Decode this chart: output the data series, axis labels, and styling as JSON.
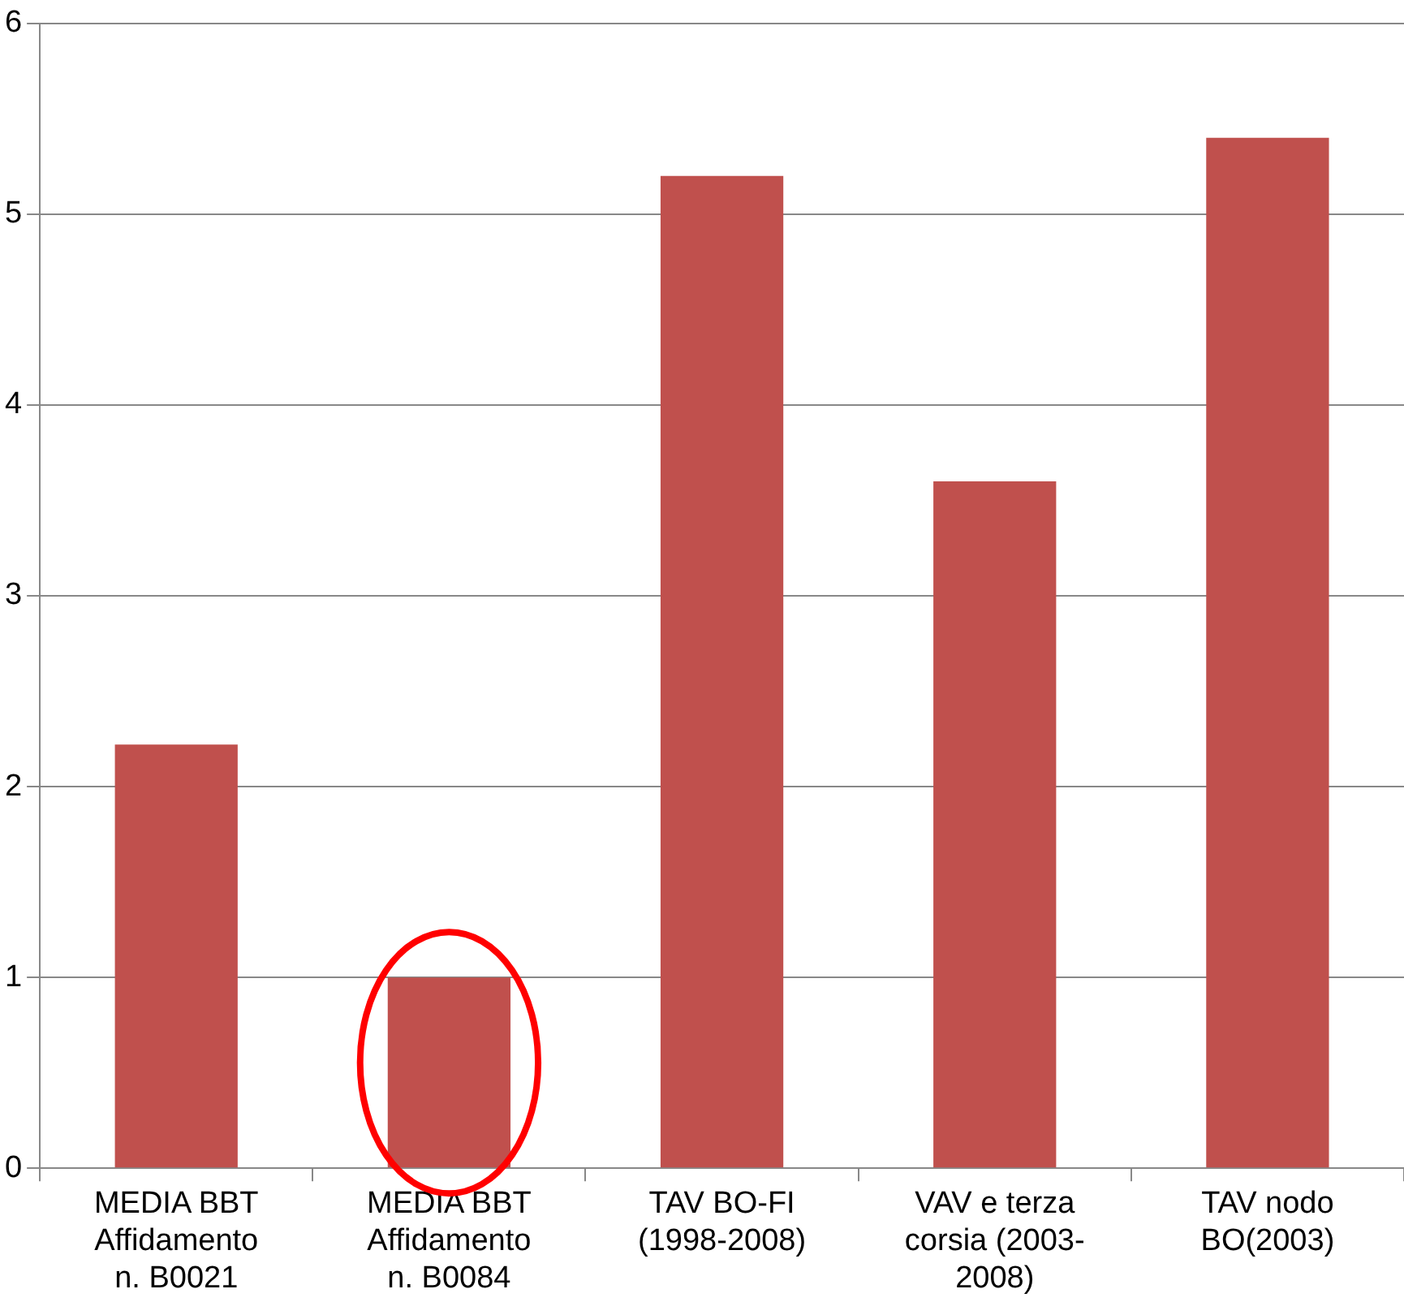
{
  "chart_data": {
    "type": "bar",
    "categories": [
      "MEDIA BBT\nAffidamento\nn. B0021",
      "MEDIA BBT\nAffidamento\nn. B0084",
      "TAV BO-FI\n(1998-2008)",
      "VAV e terza\ncorsia (2003-\n2008)",
      "TAV nodo\nBO(2003)"
    ],
    "values": [
      2.22,
      1.0,
      5.2,
      3.6,
      5.4
    ],
    "color": "#c0504d",
    "ylim": [
      0,
      6
    ],
    "yticks": [
      0,
      1,
      2,
      3,
      4,
      5,
      6
    ],
    "grid": "y",
    "legend": false
  }
}
